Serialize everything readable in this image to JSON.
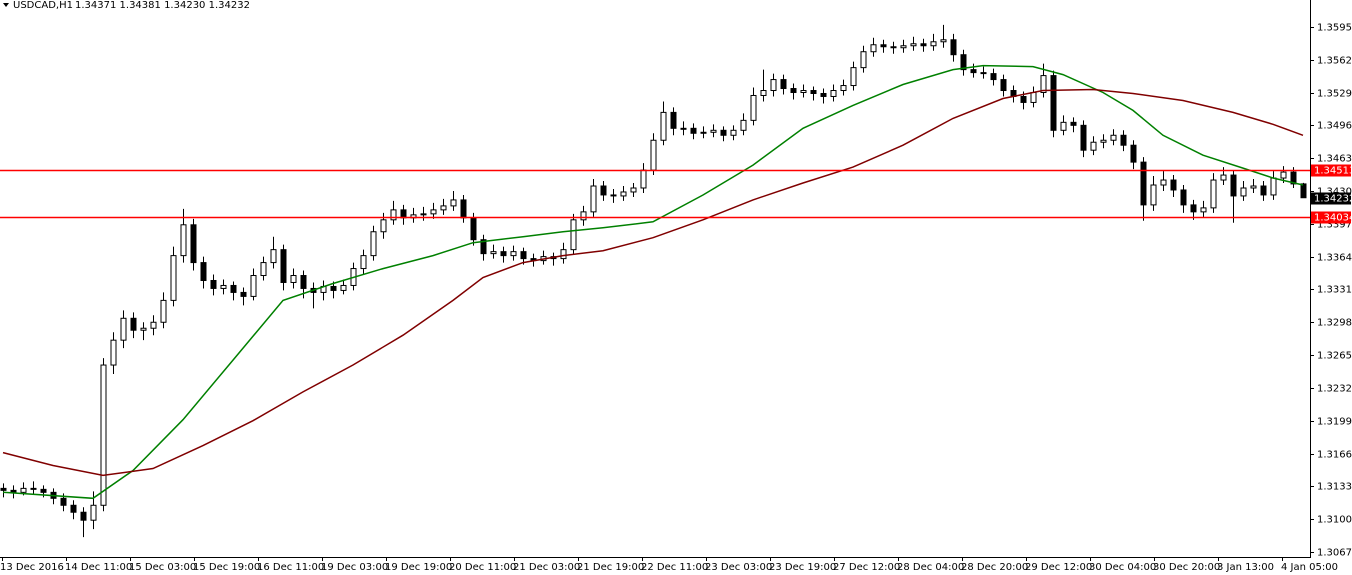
{
  "chart_data": {
    "type": "candlestick",
    "symbol": "USDCAD,H1",
    "ohlc_label": "1.34371 1.34381 1.34230 1.34232",
    "up_color": "#ffffff",
    "down_color": "#000000",
    "outline_color": "#000000",
    "candles": [
      [
        1.3131,
        1.3136,
        1.3122,
        1.3129
      ],
      [
        1.3129,
        1.3134,
        1.3121,
        1.3127
      ],
      [
        1.3127,
        1.3137,
        1.3124,
        1.3131
      ],
      [
        1.3131,
        1.3138,
        1.3125,
        1.313
      ],
      [
        1.313,
        1.3134,
        1.3122,
        1.3127
      ],
      [
        1.3127,
        1.3131,
        1.3115,
        1.3121
      ],
      [
        1.3121,
        1.3126,
        1.3108,
        1.3114
      ],
      [
        1.3114,
        1.3119,
        1.31,
        1.3107
      ],
      [
        1.3107,
        1.3112,
        1.3082,
        1.3099
      ],
      [
        1.3099,
        1.3128,
        1.309,
        1.3114
      ],
      [
        1.3114,
        1.3262,
        1.3108,
        1.3255
      ],
      [
        1.3255,
        1.3288,
        1.3246,
        1.328
      ],
      [
        1.328,
        1.331,
        1.3272,
        1.3302
      ],
      [
        1.3302,
        1.3308,
        1.3282,
        1.329
      ],
      [
        1.329,
        1.3298,
        1.328,
        1.3292
      ],
      [
        1.3292,
        1.3305,
        1.3285,
        1.3298
      ],
      [
        1.3298,
        1.3328,
        1.3292,
        1.332
      ],
      [
        1.332,
        1.3374,
        1.3314,
        1.3365
      ],
      [
        1.3365,
        1.3412,
        1.3358,
        1.3396
      ],
      [
        1.3396,
        1.3402,
        1.335,
        1.3358
      ],
      [
        1.3358,
        1.3364,
        1.3332,
        1.334
      ],
      [
        1.334,
        1.3346,
        1.3325,
        1.3332
      ],
      [
        1.3332,
        1.3341,
        1.3326,
        1.3335
      ],
      [
        1.3335,
        1.3339,
        1.332,
        1.3328
      ],
      [
        1.3328,
        1.3333,
        1.3315,
        1.3324
      ],
      [
        1.3324,
        1.3352,
        1.332,
        1.3345
      ],
      [
        1.3345,
        1.3364,
        1.334,
        1.3358
      ],
      [
        1.3358,
        1.3384,
        1.3352,
        1.3371
      ],
      [
        1.3371,
        1.3376,
        1.333,
        1.3338
      ],
      [
        1.3338,
        1.3352,
        1.3332,
        1.3345
      ],
      [
        1.3345,
        1.335,
        1.3322,
        1.3332
      ],
      [
        1.3332,
        1.3338,
        1.3312,
        1.3328
      ],
      [
        1.3328,
        1.334,
        1.332,
        1.3334
      ],
      [
        1.3334,
        1.3339,
        1.3322,
        1.333
      ],
      [
        1.333,
        1.3341,
        1.3326,
        1.3335
      ],
      [
        1.3335,
        1.3358,
        1.333,
        1.3352
      ],
      [
        1.3352,
        1.3371,
        1.3346,
        1.3365
      ],
      [
        1.3365,
        1.3395,
        1.336,
        1.3389
      ],
      [
        1.3389,
        1.3408,
        1.3382,
        1.3401
      ],
      [
        1.3401,
        1.342,
        1.3396,
        1.3411
      ],
      [
        1.3411,
        1.3416,
        1.3396,
        1.3403
      ],
      [
        1.3403,
        1.3413,
        1.3398,
        1.3406
      ],
      [
        1.3406,
        1.3414,
        1.34,
        1.3407
      ],
      [
        1.3407,
        1.3418,
        1.3402,
        1.3411
      ],
      [
        1.3411,
        1.3422,
        1.3406,
        1.3415
      ],
      [
        1.3415,
        1.343,
        1.341,
        1.3421
      ],
      [
        1.3421,
        1.3426,
        1.3398,
        1.3403
      ],
      [
        1.3403,
        1.3408,
        1.3375,
        1.3381
      ],
      [
        1.3381,
        1.3386,
        1.336,
        1.3367
      ],
      [
        1.3367,
        1.3376,
        1.3362,
        1.3369
      ],
      [
        1.3369,
        1.3374,
        1.3358,
        1.3365
      ],
      [
        1.3365,
        1.3375,
        1.336,
        1.3369
      ],
      [
        1.3369,
        1.3373,
        1.3356,
        1.3362
      ],
      [
        1.3362,
        1.3367,
        1.3354,
        1.336
      ],
      [
        1.336,
        1.337,
        1.3356,
        1.3364
      ],
      [
        1.3364,
        1.3368,
        1.3355,
        1.3362
      ],
      [
        1.3362,
        1.3378,
        1.3357,
        1.3371
      ],
      [
        1.3371,
        1.3407,
        1.3366,
        1.3401
      ],
      [
        1.3401,
        1.3415,
        1.3395,
        1.3409
      ],
      [
        1.3409,
        1.3442,
        1.3404,
        1.3435
      ],
      [
        1.3435,
        1.344,
        1.342,
        1.3426
      ],
      [
        1.3426,
        1.3432,
        1.3418,
        1.3425
      ],
      [
        1.3425,
        1.3435,
        1.342,
        1.3429
      ],
      [
        1.3429,
        1.3438,
        1.3424,
        1.3433
      ],
      [
        1.3433,
        1.3458,
        1.3428,
        1.3451
      ],
      [
        1.3451,
        1.3488,
        1.3446,
        1.3481
      ],
      [
        1.3481,
        1.352,
        1.3476,
        1.3509
      ],
      [
        1.3509,
        1.3514,
        1.3486,
        1.3493
      ],
      [
        1.3493,
        1.35,
        1.3486,
        1.3493
      ],
      [
        1.3493,
        1.3498,
        1.3482,
        1.3488
      ],
      [
        1.3488,
        1.3495,
        1.3483,
        1.3489
      ],
      [
        1.3489,
        1.3497,
        1.3484,
        1.3491
      ],
      [
        1.3491,
        1.3495,
        1.348,
        1.3486
      ],
      [
        1.3486,
        1.3496,
        1.3481,
        1.3491
      ],
      [
        1.3491,
        1.3508,
        1.3486,
        1.3501
      ],
      [
        1.3501,
        1.3534,
        1.3496,
        1.3526
      ],
      [
        1.3526,
        1.3552,
        1.352,
        1.3531
      ],
      [
        1.3531,
        1.3548,
        1.3525,
        1.3542
      ],
      [
        1.3542,
        1.3547,
        1.3527,
        1.3533
      ],
      [
        1.3533,
        1.3538,
        1.3522,
        1.3529
      ],
      [
        1.3529,
        1.3537,
        1.3524,
        1.3531
      ],
      [
        1.3531,
        1.3535,
        1.3521,
        1.3528
      ],
      [
        1.3528,
        1.3533,
        1.3518,
        1.3525
      ],
      [
        1.3525,
        1.3537,
        1.352,
        1.3531
      ],
      [
        1.3531,
        1.3542,
        1.3526,
        1.3536
      ],
      [
        1.3536,
        1.356,
        1.3531,
        1.3554
      ],
      [
        1.3554,
        1.3576,
        1.3549,
        1.357
      ],
      [
        1.357,
        1.3584,
        1.3565,
        1.3577
      ],
      [
        1.3577,
        1.3582,
        1.3569,
        1.3575
      ],
      [
        1.3575,
        1.358,
        1.3568,
        1.3574
      ],
      [
        1.3574,
        1.3582,
        1.3569,
        1.3576
      ],
      [
        1.3576,
        1.3585,
        1.3571,
        1.3578
      ],
      [
        1.3578,
        1.3583,
        1.357,
        1.3576
      ],
      [
        1.3576,
        1.3588,
        1.3571,
        1.358
      ],
      [
        1.358,
        1.3597,
        1.3574,
        1.3582
      ],
      [
        1.3582,
        1.3588,
        1.356,
        1.3567
      ],
      [
        1.3567,
        1.3572,
        1.3546,
        1.3552
      ],
      [
        1.3552,
        1.3558,
        1.3544,
        1.3549
      ],
      [
        1.3549,
        1.3555,
        1.3543,
        1.3548
      ],
      [
        1.3548,
        1.3553,
        1.3536,
        1.3542
      ],
      [
        1.3542,
        1.3547,
        1.3525,
        1.3531
      ],
      [
        1.3531,
        1.3536,
        1.3519,
        1.3525
      ],
      [
        1.3525,
        1.353,
        1.3512,
        1.3519
      ],
      [
        1.3519,
        1.3535,
        1.3514,
        1.3529
      ],
      [
        1.3529,
        1.3558,
        1.3524,
        1.3546
      ],
      [
        1.3546,
        1.3551,
        1.3484,
        1.3491
      ],
      [
        1.3491,
        1.3506,
        1.3486,
        1.3499
      ],
      [
        1.3499,
        1.3504,
        1.3489,
        1.3496
      ],
      [
        1.3496,
        1.3501,
        1.3464,
        1.3471
      ],
      [
        1.3471,
        1.3485,
        1.3466,
        1.3479
      ],
      [
        1.3479,
        1.3487,
        1.3473,
        1.3481
      ],
      [
        1.3481,
        1.3492,
        1.3476,
        1.3486
      ],
      [
        1.3486,
        1.3491,
        1.347,
        1.3476
      ],
      [
        1.3476,
        1.3481,
        1.3452,
        1.3459
      ],
      [
        1.3459,
        1.3464,
        1.34,
        1.3416
      ],
      [
        1.3416,
        1.3445,
        1.341,
        1.3436
      ],
      [
        1.3436,
        1.345,
        1.343,
        1.3441
      ],
      [
        1.3441,
        1.3446,
        1.3424,
        1.3431
      ],
      [
        1.3431,
        1.3436,
        1.3408,
        1.3416
      ],
      [
        1.3416,
        1.3421,
        1.3401,
        1.3409
      ],
      [
        1.3409,
        1.342,
        1.3403,
        1.3413
      ],
      [
        1.3413,
        1.3448,
        1.3408,
        1.3441
      ],
      [
        1.3441,
        1.3454,
        1.3436,
        1.3446
      ],
      [
        1.3446,
        1.3451,
        1.3398,
        1.3425
      ],
      [
        1.3425,
        1.344,
        1.342,
        1.3433
      ],
      [
        1.3433,
        1.3442,
        1.3428,
        1.3435
      ],
      [
        1.3435,
        1.344,
        1.342,
        1.3426
      ],
      [
        1.3426,
        1.345,
        1.3421,
        1.3443
      ],
      [
        1.3443,
        1.3455,
        1.3438,
        1.3449
      ],
      [
        1.3449,
        1.3454,
        1.3433,
        1.34371
      ],
      [
        1.34371,
        1.34381,
        1.3423,
        1.34232
      ]
    ],
    "ma_lines": [
      {
        "color": "#008000",
        "x": [
          0,
          9,
          13,
          18,
          23,
          28,
          33,
          38,
          43,
          47,
          52,
          56,
          60,
          65,
          70,
          75,
          80,
          85,
          90,
          95,
          98,
          103,
          106,
          110,
          113,
          116,
          120,
          124,
          127,
          130
        ],
        "values": [
          1.3127,
          1.3121,
          1.3149,
          1.32,
          1.326,
          1.332,
          1.3337,
          1.3352,
          1.3365,
          1.3378,
          1.3384,
          1.3389,
          1.3393,
          1.3399,
          1.3426,
          1.3456,
          1.3493,
          1.3516,
          1.3537,
          1.3552,
          1.3556,
          1.3555,
          1.3547,
          1.3529,
          1.3511,
          1.3486,
          1.3466,
          1.3453,
          1.3443,
          1.3436
        ]
      },
      {
        "color": "#800000",
        "x": [
          0,
          5,
          10,
          15,
          20,
          25,
          30,
          35,
          40,
          45,
          48,
          52,
          56,
          60,
          65,
          70,
          75,
          80,
          85,
          90,
          95,
          100,
          104,
          109,
          113,
          118,
          123,
          127,
          130
        ],
        "values": [
          1.3167,
          1.3154,
          1.3144,
          1.3151,
          1.3174,
          1.3199,
          1.3228,
          1.3255,
          1.3285,
          1.332,
          1.3343,
          1.3358,
          1.3365,
          1.337,
          1.3383,
          1.3401,
          1.3421,
          1.3438,
          1.3454,
          1.3476,
          1.3503,
          1.3523,
          1.3531,
          1.3532,
          1.3528,
          1.3521,
          1.3509,
          1.3497,
          1.3486
        ]
      }
    ],
    "levels": [
      1.34513,
      1.34034
    ],
    "level_color": "#ff0000",
    "bid": 1.34232,
    "ylim": [
      1.3062,
      1.3622
    ],
    "yticks": [
      {
        "value": 1.3595,
        "label": "1.35950"
      },
      {
        "value": 1.3562,
        "label": "1.35620"
      },
      {
        "value": 1.3529,
        "label": "1.35290"
      },
      {
        "value": 1.3496,
        "label": "1.34960"
      },
      {
        "value": 1.3463,
        "label": "1.34630"
      },
      {
        "value": 1.343,
        "label": "1.34300"
      },
      {
        "value": 1.3397,
        "label": "1.33970"
      },
      {
        "value": 1.3364,
        "label": "1.33640"
      },
      {
        "value": 1.3331,
        "label": "1.33310"
      },
      {
        "value": 1.3298,
        "label": "1.32980"
      },
      {
        "value": 1.3265,
        "label": "1.32650"
      },
      {
        "value": 1.3232,
        "label": "1.32320"
      },
      {
        "value": 1.3199,
        "label": "1.31990"
      },
      {
        "value": 1.3166,
        "label": "1.31660"
      },
      {
        "value": 1.3133,
        "label": "1.31330"
      },
      {
        "value": 1.31,
        "label": "1.31000"
      },
      {
        "value": 1.3067,
        "label": "1.30670"
      }
    ],
    "time_labels": [
      "13 Dec 2016",
      "14 Dec 11:00",
      "15 Dec 03:00",
      "15 Dec 19:00",
      "16 Dec 11:00",
      "19 Dec 03:00",
      "19 Dec 19:00",
      "20 Dec 11:00",
      "21 Dec 03:00",
      "21 Dec 19:00",
      "22 Dec 11:00",
      "23 Dec 03:00",
      "23 Dec 19:00",
      "27 Dec 12:00",
      "28 Dec 04:00",
      "28 Dec 20:00",
      "29 Dec 12:00",
      "30 Dec 04:00",
      "30 Dec 20:00",
      "3 Jan 13:00",
      "4 Jan 05:00"
    ]
  }
}
